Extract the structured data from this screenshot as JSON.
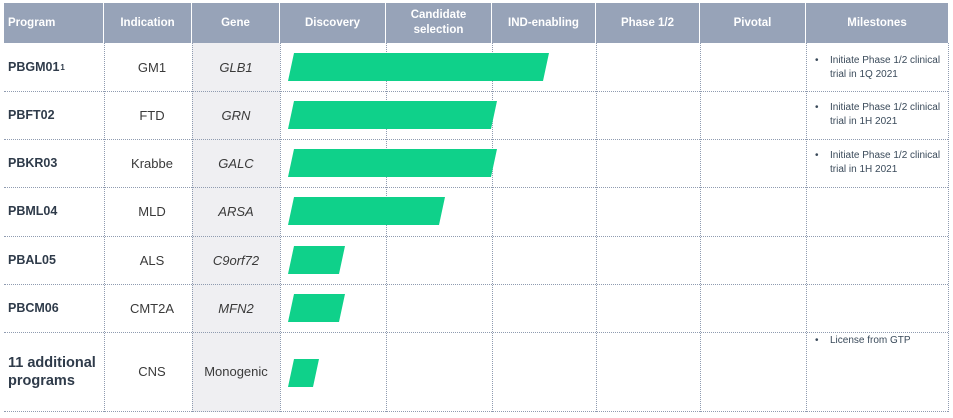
{
  "headers": {
    "program": "Program",
    "indication": "Indication",
    "gene": "Gene",
    "discovery": "Discovery",
    "candidate_selection": "Candidate selection",
    "ind_enabling": "IND-enabling",
    "phase12": "Phase 1/2",
    "pivotal": "Pivotal",
    "milestones": "Milestones"
  },
  "rows": [
    {
      "program": "PBGM01",
      "superscript": "1",
      "indication": "GM1",
      "gene": "GLB1",
      "progress_fraction": 0.5,
      "milestone": "Initiate Phase 1/2 clinical trial in 1Q 2021"
    },
    {
      "program": "PBFT02",
      "indication": "FTD",
      "gene": "GRN",
      "progress_fraction": 0.4,
      "milestone": "Initiate Phase 1/2 clinical trial in 1H 2021"
    },
    {
      "program": "PBKR03",
      "indication": "Krabbe",
      "gene": "GALC",
      "progress_fraction": 0.4,
      "milestone": "Initiate Phase 1/2 clinical trial in 1H 2021"
    },
    {
      "program": "PBML04",
      "indication": "MLD",
      "gene": "ARSA",
      "progress_fraction": 0.3
    },
    {
      "program": "PBAL05",
      "indication": "ALS",
      "gene": "C9orf72",
      "progress_fraction": 0.11
    },
    {
      "program": "PBCM06",
      "indication": "CMT2A",
      "gene": "MFN2",
      "progress_fraction": 0.11
    },
    {
      "program": "11 additional programs",
      "indication": "CNS",
      "gene": "Monogenic",
      "progress_fraction": 0.06,
      "milestone": "License from GTP"
    }
  ],
  "bullet": "•",
  "colors": {
    "bar": "#0fd18a",
    "header": "#97a3b8"
  }
}
